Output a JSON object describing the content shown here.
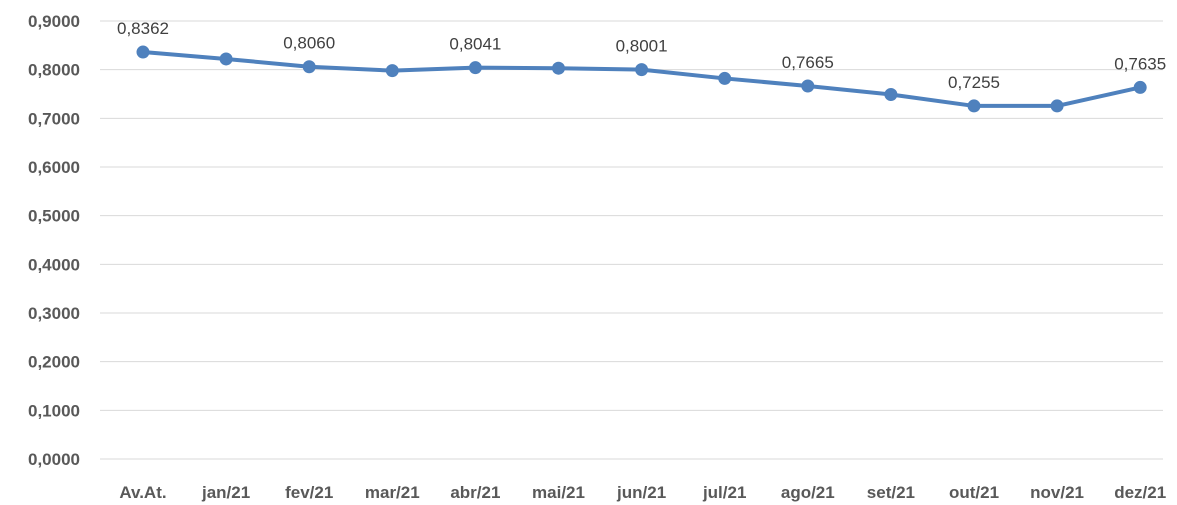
{
  "chart_data": {
    "type": "line",
    "categories": [
      "Av.At.",
      "jan/21",
      "fev/21",
      "mar/21",
      "abr/21",
      "mai/21",
      "jun/21",
      "jul/21",
      "ago/21",
      "set/21",
      "out/21",
      "nov/21",
      "dez/21"
    ],
    "series": [
      {
        "values": [
          0.8362,
          0.822,
          0.806,
          0.798,
          0.8041,
          0.803,
          0.8001,
          0.782,
          0.7665,
          0.749,
          0.7255,
          0.7255,
          0.7635
        ],
        "color": "#4f81bd"
      }
    ],
    "data_labels": [
      {
        "index": 0,
        "text": "0,8362"
      },
      {
        "index": 2,
        "text": "0,8060"
      },
      {
        "index": 4,
        "text": "0,8041"
      },
      {
        "index": 6,
        "text": "0,8001"
      },
      {
        "index": 8,
        "text": "0,7665"
      },
      {
        "index": 10,
        "text": "0,7255"
      },
      {
        "index": 12,
        "text": "0,7635"
      }
    ],
    "y_ticks": [
      "0,0000",
      "0,1000",
      "0,2000",
      "0,3000",
      "0,4000",
      "0,5000",
      "0,6000",
      "0,7000",
      "0,8000",
      "0,9000"
    ],
    "ylim": [
      0,
      0.9
    ],
    "grid": true,
    "legend": "none"
  }
}
